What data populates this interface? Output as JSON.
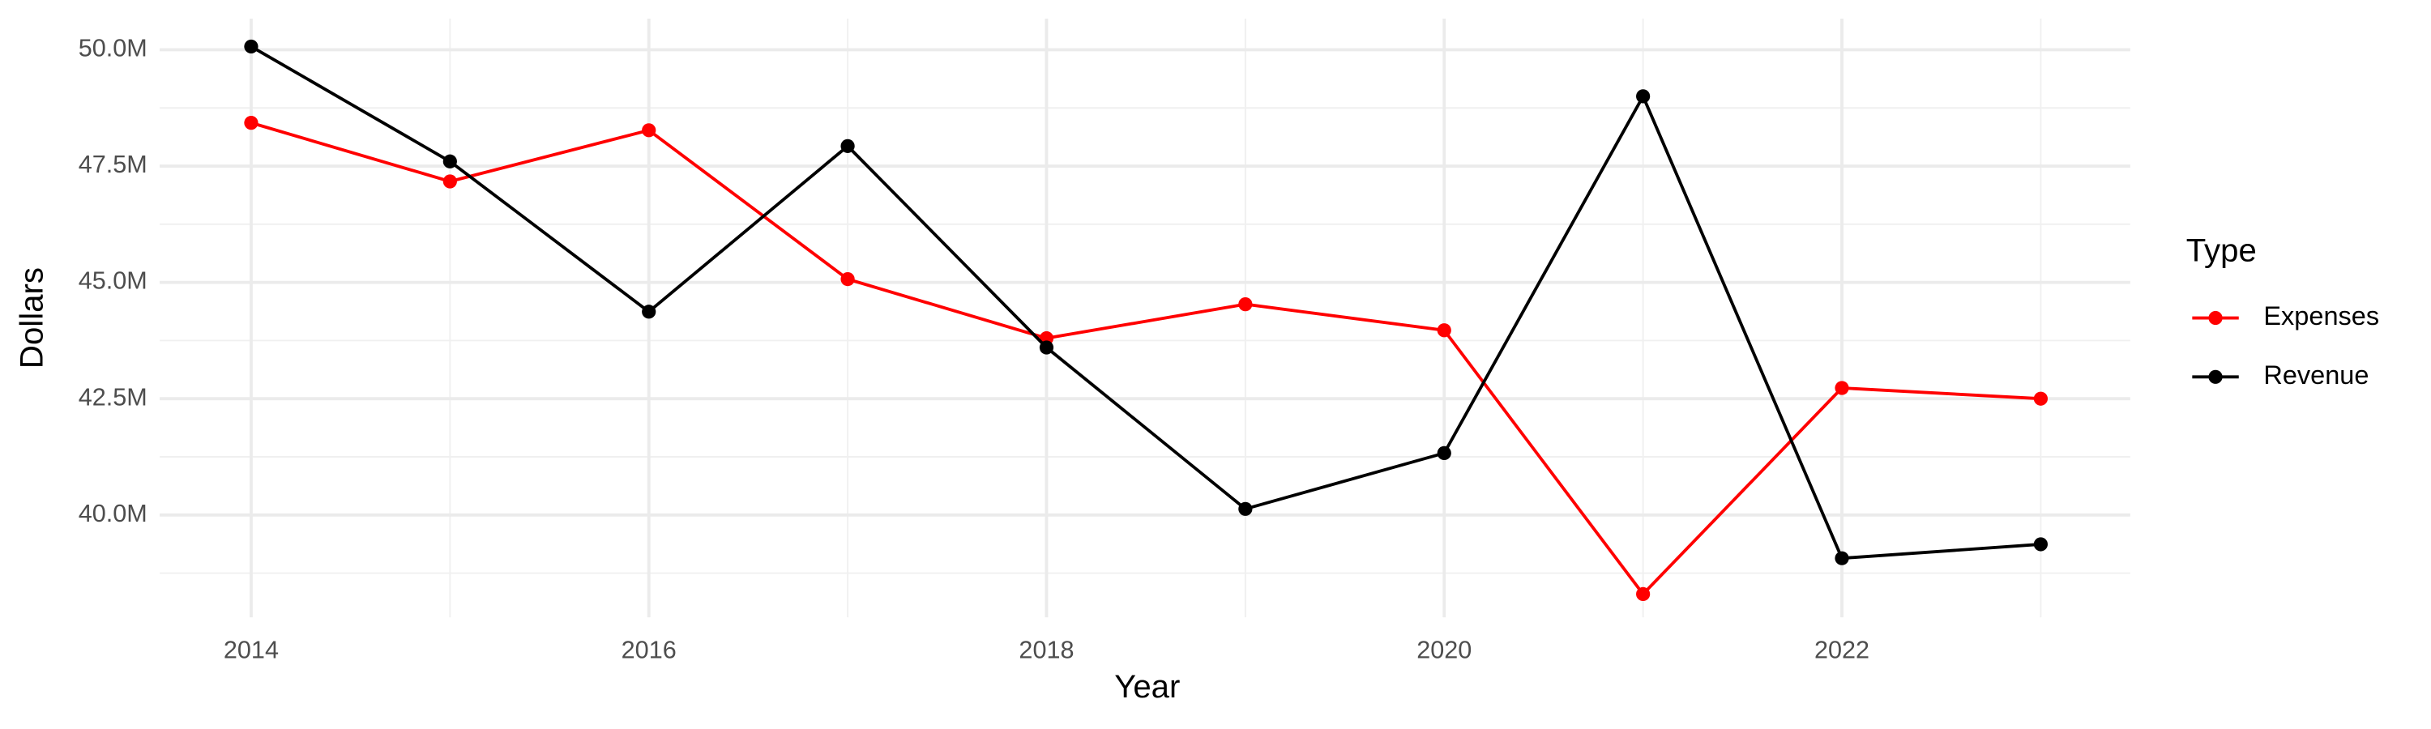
{
  "chart_data": {
    "type": "line",
    "x_label": "Year",
    "y_label": "Dollars",
    "legend_title": "Type",
    "legend_position": "right",
    "grid": true,
    "x": [
      2014,
      2015,
      2016,
      2017,
      2018,
      2019,
      2020,
      2021,
      2022,
      2023
    ],
    "series": [
      {
        "name": "Expenses",
        "color": "#ff0000",
        "values": [
          48430000,
          47170000,
          48270000,
          45070000,
          43800000,
          44530000,
          43970000,
          38300000,
          42730000,
          42500000
        ]
      },
      {
        "name": "Revenue",
        "color": "#000000",
        "values": [
          50070000,
          47600000,
          44370000,
          47930000,
          43600000,
          40130000,
          41330000,
          49000000,
          39070000,
          39370000
        ]
      }
    ],
    "xlim": [
      2013.54,
      2023.45
    ],
    "xticks": [
      2014,
      2016,
      2018,
      2020,
      2022
    ],
    "x_minor_grid": [
      2015,
      2017,
      2019,
      2021,
      2023
    ],
    "ylim": [
      37800000,
      50670000
    ],
    "yticks": [
      {
        "value": 40000000,
        "label": "40.0M"
      },
      {
        "value": 42500000,
        "label": "42.5M"
      },
      {
        "value": 45000000,
        "label": "45.0M"
      },
      {
        "value": 47500000,
        "label": "47.5M"
      },
      {
        "value": 50000000,
        "label": "50.0M"
      }
    ],
    "y_minor_grid": [
      38750000,
      41250000,
      43750000,
      46250000,
      48750000
    ]
  }
}
